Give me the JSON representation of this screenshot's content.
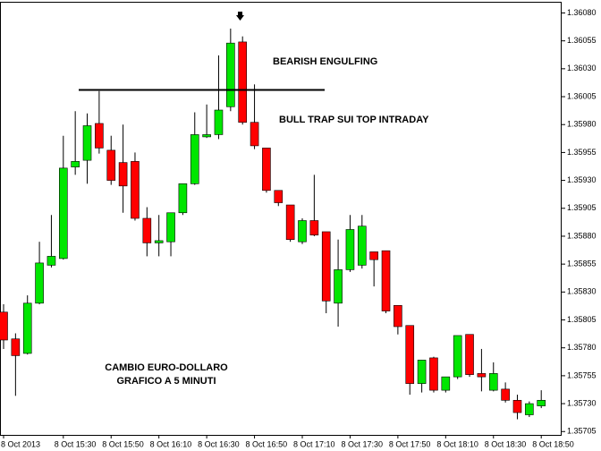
{
  "chart_data": {
    "type": "candlestick",
    "annotations": [
      "BEARISH ENGULFING",
      "BULL TRAP SUI TOP INTRADAY",
      "CAMBIO EURO-DOLLARO",
      "GRAFICO A 5 MINUTI"
    ],
    "categories": [
      "8 Oct 2013",
      null,
      null,
      null,
      null,
      "8 Oct 15:30",
      null,
      null,
      null,
      "8 Oct 15:50",
      null,
      null,
      null,
      "8 Oct 16:10",
      null,
      null,
      null,
      "8 Oct 16:30",
      null,
      null,
      null,
      "8 Oct 16:50",
      null,
      null,
      null,
      "8 Oct 17:10",
      null,
      null,
      null,
      "8 Oct 17:30",
      null,
      null,
      null,
      "8 Oct 17:50",
      null,
      null,
      null,
      "8 Oct 18:10",
      null,
      null,
      null,
      "8 Oct 18:30",
      null,
      null,
      null,
      "8 Oct 18:50"
    ],
    "open": [
      1.35812,
      1.35788,
      1.35775,
      1.3582,
      1.35854,
      1.3586,
      1.35942,
      1.35948,
      1.35981,
      1.35957,
      1.35946,
      1.35947,
      1.35896,
      1.35874,
      1.35875,
      1.35901,
      1.35927,
      1.35969,
      1.35971,
      1.35996,
      1.36054,
      1.35982,
      1.35959,
      1.35921,
      1.35908,
      1.35875,
      1.35894,
      1.35884,
      1.3582,
      1.3585,
      1.35854,
      1.35866,
      1.35867,
      1.35818,
      1.358,
      1.35748,
      1.35771,
      1.35742,
      1.35754,
      1.35792,
      1.35757,
      1.35742,
      1.35743,
      1.35733,
      1.3572,
      1.35728
    ],
    "high": [
      1.35819,
      1.35793,
      1.35827,
      1.35875,
      1.35899,
      1.3597,
      1.35992,
      1.3599,
      1.3601,
      1.3597,
      1.3598,
      1.35955,
      1.35906,
      1.35899,
      1.35901,
      1.35927,
      1.35991,
      1.35998,
      1.36042,
      1.36066,
      1.36059,
      1.36016,
      1.35959,
      1.35921,
      1.35908,
      1.35896,
      1.35935,
      1.35884,
      1.35877,
      1.35899,
      1.35899,
      1.35866,
      1.35867,
      1.35818,
      1.358,
      1.35769,
      1.35772,
      1.35754,
      1.35791,
      1.35792,
      1.35779,
      1.35767,
      1.35749,
      1.35738,
      1.35732,
      1.35742
    ],
    "low": [
      1.35779,
      1.35737,
      1.35774,
      1.35819,
      1.35852,
      1.35859,
      1.35935,
      1.35927,
      1.35954,
      1.35926,
      1.35901,
      1.35894,
      1.35862,
      1.35862,
      1.35862,
      1.35899,
      1.35926,
      1.35968,
      1.35967,
      1.35992,
      1.3598,
      1.35958,
      1.35919,
      1.35907,
      1.35875,
      1.35873,
      1.3588,
      1.35811,
      1.35799,
      1.35848,
      1.35851,
      1.35835,
      1.35811,
      1.35792,
      1.35738,
      1.3574,
      1.3574,
      1.3574,
      1.35752,
      1.35754,
      1.35741,
      1.35741,
      1.35731,
      1.35716,
      1.35718,
      1.35726
    ],
    "close": [
      1.35787,
      1.35773,
      1.3582,
      1.35856,
      1.35862,
      1.35941,
      1.35947,
      1.35979,
      1.35959,
      1.3593,
      1.35925,
      1.35896,
      1.35874,
      1.35876,
      1.35901,
      1.35927,
      1.35971,
      1.35971,
      1.35993,
      1.36053,
      1.35982,
      1.35961,
      1.35921,
      1.3591,
      1.35877,
      1.35894,
      1.35881,
      1.35822,
      1.3585,
      1.35886,
      1.35889,
      1.35859,
      1.35813,
      1.35799,
      1.35748,
      1.35769,
      1.35742,
      1.35754,
      1.35791,
      1.35756,
      1.35754,
      1.35757,
      1.35733,
      1.35722,
      1.3573,
      1.35733
    ],
    "up_color": "#00e600",
    "down_color": "#ff0000",
    "resistance_level": 1.36011,
    "ylim": [
      1.35702,
      1.3609
    ],
    "yticks": [
      {
        "value": 1.3608,
        "label": "1.36080"
      },
      1.36055,
      {
        "value": 1.3603,
        "label": "1.36030"
      },
      1.36005,
      {
        "value": 1.3598,
        "label": "1.35980"
      },
      1.35955,
      {
        "value": 1.3593,
        "label": "1.35930"
      },
      1.35905,
      {
        "value": 1.3588,
        "label": "1.35880"
      },
      1.35855,
      {
        "value": 1.3583,
        "label": "1.35830"
      },
      1.35805,
      {
        "value": 1.3578,
        "label": "1.35780"
      },
      1.35755,
      {
        "value": 1.3573,
        "label": "1.35730"
      },
      1.35705
    ]
  }
}
